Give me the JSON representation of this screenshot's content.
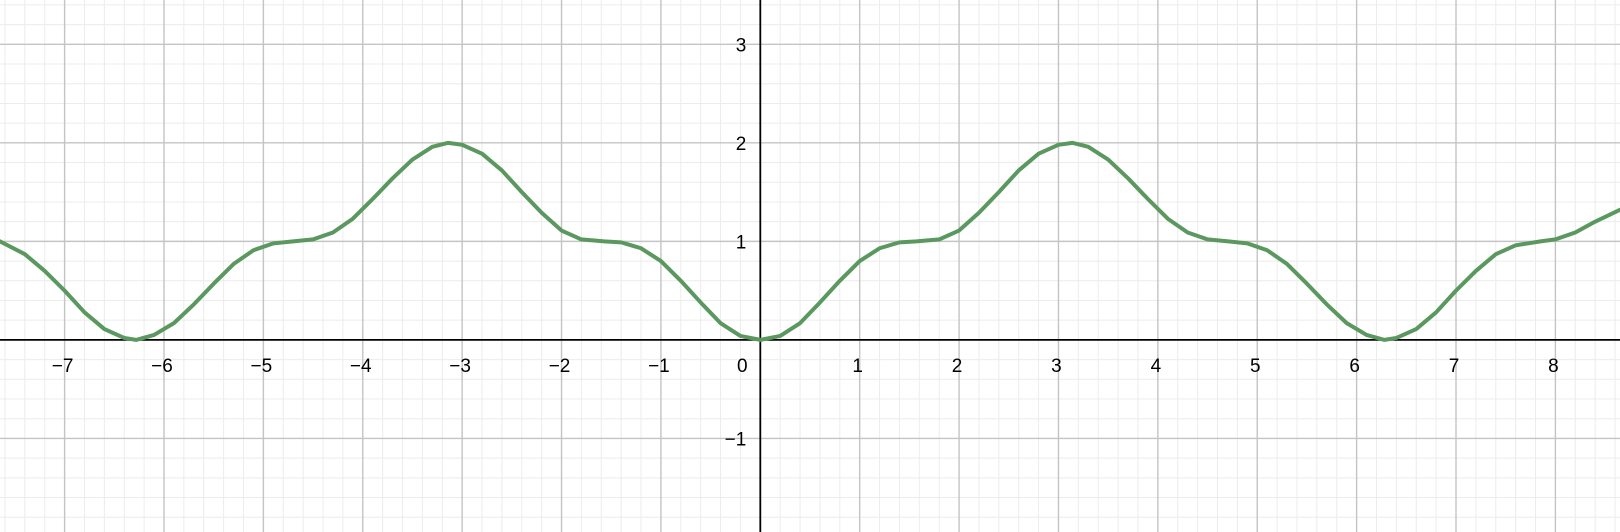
{
  "chart_data": {
    "type": "line",
    "title": "",
    "xlabel": "",
    "ylabel": "",
    "xlim": [
      -7.65,
      8.65
    ],
    "ylim": [
      -1.95,
      3.45
    ],
    "grid": true,
    "minor_grid": true,
    "x_ticks": [
      -7,
      -6,
      -5,
      -4,
      -3,
      -2,
      -1,
      1,
      2,
      3,
      4,
      5,
      6,
      7,
      8
    ],
    "y_ticks": [
      -1,
      1,
      2,
      3
    ],
    "origin_label": "0",
    "series": [
      {
        "color": "#5a9860",
        "x": [
          -7.65,
          -7.4,
          -7.2,
          -7.0,
          -6.8,
          -6.6,
          -6.4,
          -6.28,
          -6.1,
          -5.9,
          -5.7,
          -5.5,
          -5.3,
          -5.1,
          -4.9,
          -4.7,
          -4.5,
          -4.3,
          -4.1,
          -3.9,
          -3.7,
          -3.5,
          -3.3,
          -3.14,
          -3.0,
          -2.8,
          -2.6,
          -2.4,
          -2.2,
          -2.0,
          -1.8,
          -1.57,
          -1.4,
          -1.2,
          -1.0,
          -0.8,
          -0.6,
          -0.4,
          -0.2,
          0.0,
          0.2,
          0.4,
          0.6,
          0.8,
          1.0,
          1.2,
          1.4,
          1.57,
          1.8,
          2.0,
          2.2,
          2.4,
          2.6,
          2.8,
          3.0,
          3.14,
          3.3,
          3.5,
          3.7,
          3.9,
          4.1,
          4.3,
          4.5,
          4.71,
          4.9,
          5.1,
          5.3,
          5.5,
          5.7,
          5.9,
          6.1,
          6.28,
          6.4,
          6.6,
          6.8,
          7.0,
          7.2,
          7.4,
          7.6,
          7.85,
          8.0,
          8.2,
          8.4,
          8.65
        ],
        "y": [
          1.0,
          0.87,
          0.7,
          0.5,
          0.28,
          0.11,
          0.02,
          0.0,
          0.05,
          0.17,
          0.36,
          0.57,
          0.77,
          0.91,
          0.98,
          1.0,
          1.02,
          1.09,
          1.23,
          1.43,
          1.64,
          1.83,
          1.96,
          2.0,
          1.98,
          1.89,
          1.72,
          1.5,
          1.29,
          1.11,
          1.02,
          1.0,
          0.99,
          0.93,
          0.8,
          0.6,
          0.38,
          0.17,
          0.04,
          0.0,
          0.04,
          0.17,
          0.38,
          0.6,
          0.8,
          0.93,
          0.99,
          1.0,
          1.02,
          1.11,
          1.29,
          1.5,
          1.72,
          1.89,
          1.98,
          2.0,
          1.96,
          1.83,
          1.64,
          1.43,
          1.23,
          1.09,
          1.02,
          1.0,
          0.98,
          0.91,
          0.77,
          0.57,
          0.36,
          0.17,
          0.05,
          0.0,
          0.02,
          0.11,
          0.28,
          0.5,
          0.7,
          0.87,
          0.96,
          1.0,
          1.02,
          1.09,
          1.2,
          1.32
        ]
      }
    ]
  },
  "colors": {
    "background": "#ffffff",
    "minor_grid": "#ececec",
    "major_grid": "#c4c4c4",
    "axis": "#000000",
    "curve": "#5a9860"
  }
}
